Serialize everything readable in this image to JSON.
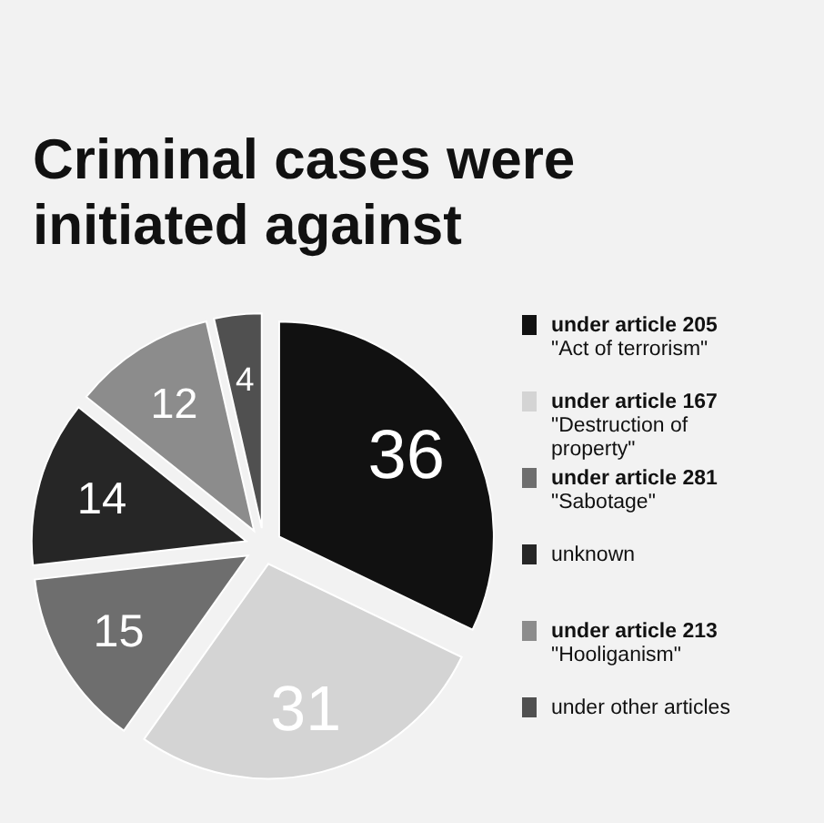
{
  "chart_data": {
    "type": "pie",
    "title": "Criminal cases were initiated against",
    "categories": [
      "under article 205\n\"Act of terrorism\"",
      "under article 167\n\"Destruction of\nproperty\"",
      "under article 281\n\"Sabotage\"",
      "unknown",
      "under article 213\n\"Hooliganism\"",
      "under other articles"
    ],
    "values": [
      36,
      31,
      15,
      14,
      12,
      4
    ],
    "colors": [
      "#111111",
      "#d4d4d4",
      "#6e6e6e",
      "#262626",
      "#8c8c8c",
      "#505050"
    ],
    "data_labels": true,
    "legend": "right"
  }
}
